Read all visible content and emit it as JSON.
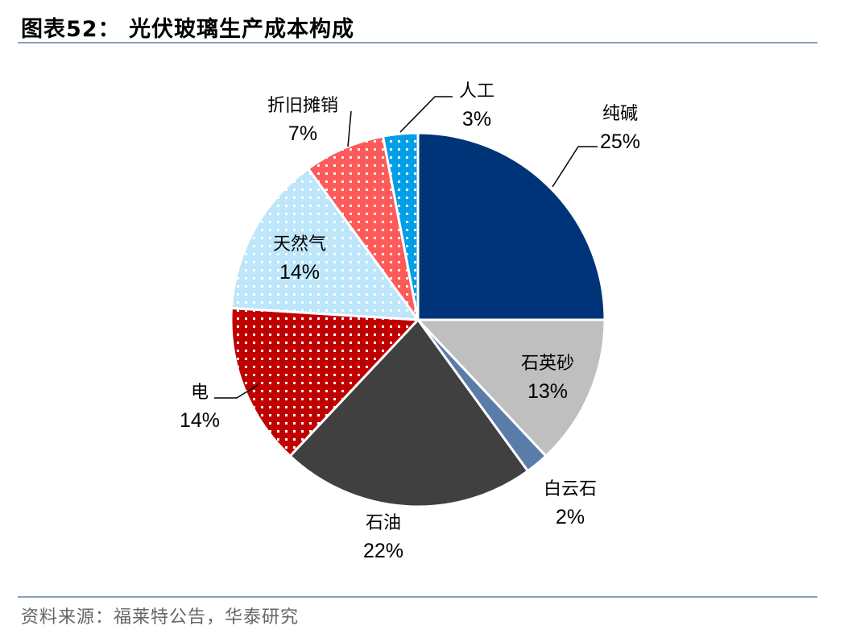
{
  "figure": {
    "title": "图表52：  光伏玻璃生产成本构成",
    "source": "资料来源：福莱特公告，华泰研究"
  },
  "chart_data": {
    "type": "pie",
    "slices": [
      {
        "label": "纯碱",
        "value": 25,
        "value_text": "25%",
        "color": "#003478",
        "pattern": "none"
      },
      {
        "label": "石英砂",
        "value": 13,
        "value_text": "13%",
        "color": "#bfbfbf",
        "pattern": "none"
      },
      {
        "label": "白云石",
        "value": 2,
        "value_text": "2%",
        "color": "#5a7ca8",
        "pattern": "none"
      },
      {
        "label": "石油",
        "value": 22,
        "value_text": "22%",
        "color": "#404040",
        "pattern": "none"
      },
      {
        "label": "电",
        "value": 14,
        "value_text": "14%",
        "color": "#c00000",
        "pattern": "dots"
      },
      {
        "label": "天然气",
        "value": 14,
        "value_text": "14%",
        "color": "#bde6fa",
        "pattern": "dots"
      },
      {
        "label": "折旧摊销",
        "value": 7,
        "value_text": "7%",
        "color": "#ff5a5a",
        "pattern": "dots"
      },
      {
        "label": "人工",
        "value": 3,
        "value_text": "3%",
        "color": "#00a0e8",
        "pattern": "dots"
      }
    ]
  }
}
